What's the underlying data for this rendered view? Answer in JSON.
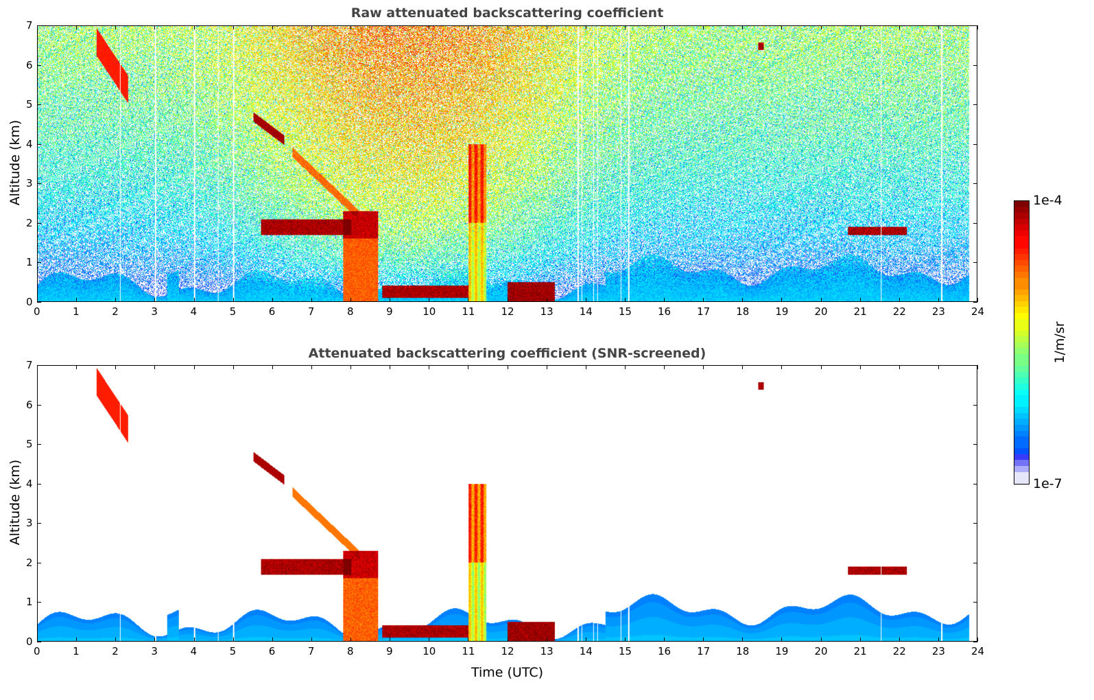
{
  "chart_data": [
    {
      "type": "heatmap",
      "title": "Raw attenuated backscattering coefficient",
      "xlabel": "",
      "ylabel": "Altitude (km)",
      "xlim": [
        0,
        24
      ],
      "ylim": [
        0,
        7
      ],
      "xticks": [
        0,
        1,
        2,
        3,
        4,
        5,
        6,
        7,
        8,
        9,
        10,
        11,
        12,
        13,
        14,
        15,
        16,
        17,
        18,
        19,
        20,
        21,
        22,
        23,
        24
      ],
      "yticks": [
        0,
        1,
        2,
        3,
        4,
        5,
        6,
        7
      ],
      "screened": false
    },
    {
      "type": "heatmap",
      "title": "Attenuated backscattering coefficient (SNR-screened)",
      "xlabel": "Time (UTC)",
      "ylabel": "Altitude (km)",
      "xlim": [
        0,
        24
      ],
      "ylim": [
        0,
        7
      ],
      "xticks": [
        0,
        1,
        2,
        3,
        4,
        5,
        6,
        7,
        8,
        9,
        10,
        11,
        12,
        13,
        14,
        15,
        16,
        17,
        18,
        19,
        20,
        21,
        22,
        23,
        24
      ],
      "yticks": [
        0,
        1,
        2,
        3,
        4,
        5,
        6,
        7
      ],
      "screened": true
    }
  ],
  "colorbar": {
    "label": "1/m/sr",
    "min_label": "1e-7",
    "max_label": "1e-4",
    "log_range": [
      -7,
      -4
    ],
    "colormap": "jet"
  },
  "features_log10": [
    {
      "name": "boundary layer",
      "t": [
        0,
        23.8
      ],
      "z": [
        0,
        0.7
      ],
      "value": -6.3
    },
    {
      "name": "cirrus",
      "t": [
        1.5,
        2.3
      ],
      "z": [
        5.1,
        6.8
      ],
      "value": -4.5
    },
    {
      "name": "elevated layer",
      "t": [
        5.5,
        6.3
      ],
      "z": [
        4.0,
        4.8
      ],
      "value": -4.1
    },
    {
      "name": "aerosol layer",
      "t": [
        5.7,
        8.0
      ],
      "z": [
        1.7,
        2.1
      ],
      "value": -4.1
    },
    {
      "name": "falling streak",
      "t": [
        6.5,
        8.2
      ],
      "z": [
        2.0,
        3.8
      ],
      "value": -4.8
    },
    {
      "name": "dense cloud",
      "t": [
        7.8,
        8.7
      ],
      "z": [
        0,
        2.3
      ],
      "value": -4.6
    },
    {
      "name": "low cloud",
      "t": [
        8.8,
        11.0
      ],
      "z": [
        0.1,
        0.4
      ],
      "value": -4.1
    },
    {
      "name": "convective column",
      "t": [
        11.0,
        11.45
      ],
      "z": [
        0,
        4.0
      ],
      "value": -5.0
    },
    {
      "name": "low cloud 2",
      "t": [
        12.0,
        13.2
      ],
      "z": [
        0,
        0.5
      ],
      "value": -4.05
    },
    {
      "name": "cloud 1.8km",
      "t": [
        20.7,
        22.2
      ],
      "z": [
        1.7,
        1.9
      ],
      "value": -4.1
    },
    {
      "name": "high cloud",
      "t": [
        18.4,
        18.55
      ],
      "z": [
        6.4,
        6.6
      ],
      "value": -4.1
    }
  ]
}
